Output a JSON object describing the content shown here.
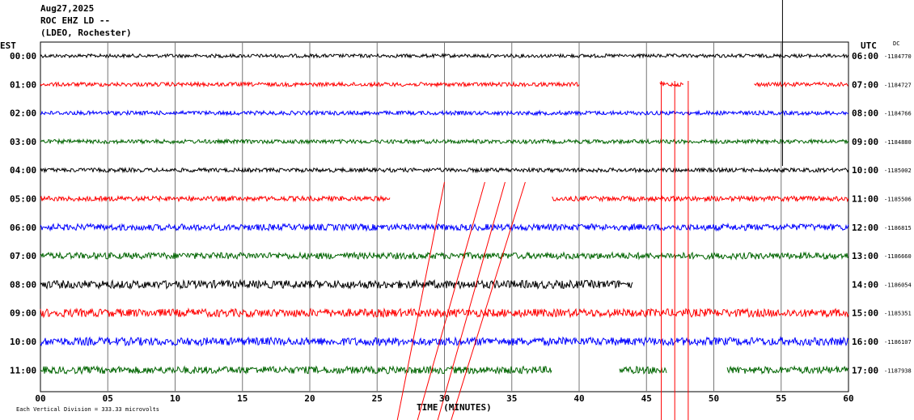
{
  "header": {
    "date": "Aug27,2025",
    "station": "ROC EHZ LD --",
    "network": "(LDEO, Rochester)"
  },
  "left_tz": "EST",
  "right_tz": "UTC",
  "dc_label": "DC",
  "footer": {
    "time_label": "TIME (MINUTES)",
    "scale_note": "Each Vertical Division =  333.33 microvolts"
  },
  "colors": [
    "#000000",
    "#ff0000",
    "#0000ff",
    "#006400"
  ],
  "chart_data": {
    "type": "line",
    "title": "",
    "xlabel": "TIME (MINUTES)",
    "xlim": [
      0,
      60
    ],
    "x_ticks": [
      "00",
      "05",
      "10",
      "15",
      "20",
      "25",
      "30",
      "35",
      "40",
      "45",
      "50",
      "55",
      "60"
    ],
    "grid": true,
    "rows": [
      {
        "est": "00:00",
        "utc": "06:00",
        "dc": "-1184770",
        "segments": [
          [
            0,
            60
          ]
        ],
        "amp": 2.2
      },
      {
        "est": "01:00",
        "utc": "07:00",
        "dc": "-1184727",
        "segments": [
          [
            0,
            40
          ],
          [
            46,
            47.8
          ],
          [
            53,
            60
          ]
        ],
        "amp": 2.5
      },
      {
        "est": "02:00",
        "utc": "08:00",
        "dc": "-1184766",
        "segments": [
          [
            0,
            60
          ]
        ],
        "amp": 2.5
      },
      {
        "est": "03:00",
        "utc": "09:00",
        "dc": "-1184880",
        "segments": [
          [
            0,
            60
          ]
        ],
        "amp": 2.5
      },
      {
        "est": "04:00",
        "utc": "10:00",
        "dc": "-1185002",
        "segments": [
          [
            0,
            60
          ]
        ],
        "amp": 2.5
      },
      {
        "est": "05:00",
        "utc": "11:00",
        "dc": "-1185506",
        "segments": [
          [
            0,
            26
          ],
          [
            38,
            60
          ]
        ],
        "amp": 3
      },
      {
        "est": "06:00",
        "utc": "12:00",
        "dc": "-1186815",
        "segments": [
          [
            0,
            60
          ]
        ],
        "amp": 4
      },
      {
        "est": "07:00",
        "utc": "13:00",
        "dc": "-1186660",
        "segments": [
          [
            0,
            60
          ]
        ],
        "amp": 4
      },
      {
        "est": "08:00",
        "utc": "14:00",
        "dc": "-1186054",
        "segments": [
          [
            0,
            44
          ]
        ],
        "amp": 5
      },
      {
        "est": "09:00",
        "utc": "15:00",
        "dc": "-1185351",
        "segments": [
          [
            0,
            60
          ]
        ],
        "amp": 5
      },
      {
        "est": "10:00",
        "utc": "16:00",
        "dc": "-1186107",
        "segments": [
          [
            0,
            60
          ]
        ],
        "amp": 5
      },
      {
        "est": "11:00",
        "utc": "17:00",
        "dc": "-1187938",
        "segments": [
          [
            0,
            38
          ],
          [
            43,
            46.5
          ],
          [
            51,
            60
          ]
        ],
        "amp": 4.5
      }
    ]
  }
}
